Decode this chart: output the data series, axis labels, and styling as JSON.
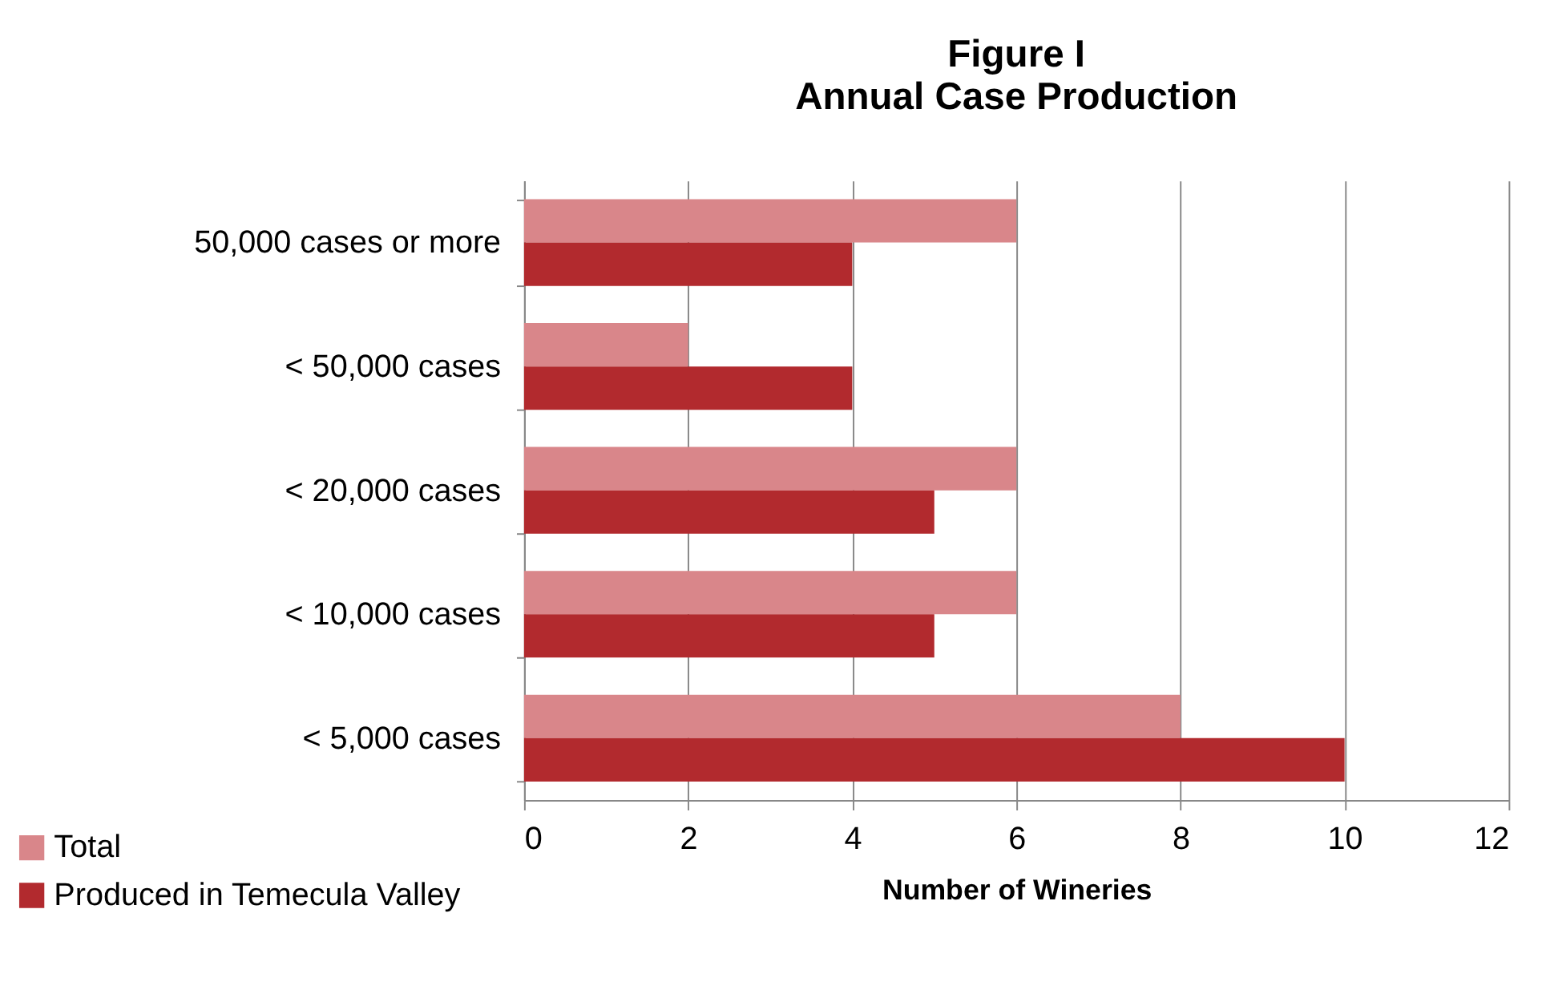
{
  "chart_data": {
    "type": "bar",
    "orientation": "horizontal",
    "title": "Figure I",
    "subtitle": "Annual Case Production",
    "xlabel": "Number of Wineries",
    "categories": [
      "50,000 cases or more",
      "< 50,000 cases",
      "< 20,000 cases",
      "< 10,000 cases",
      "< 5,000 cases"
    ],
    "series": [
      {
        "name": "Total",
        "color": "#d9868a",
        "values": [
          6,
          2,
          6,
          6,
          8
        ]
      },
      {
        "name": "Produced in Temecula Valley",
        "color": "#b22a2e",
        "values": [
          4,
          4,
          5,
          5,
          10
        ]
      }
    ],
    "xlim": [
      0,
      12
    ],
    "xticks": [
      0,
      2,
      4,
      6,
      8,
      10,
      12
    ],
    "grid": "x",
    "legend": "bottom left"
  }
}
